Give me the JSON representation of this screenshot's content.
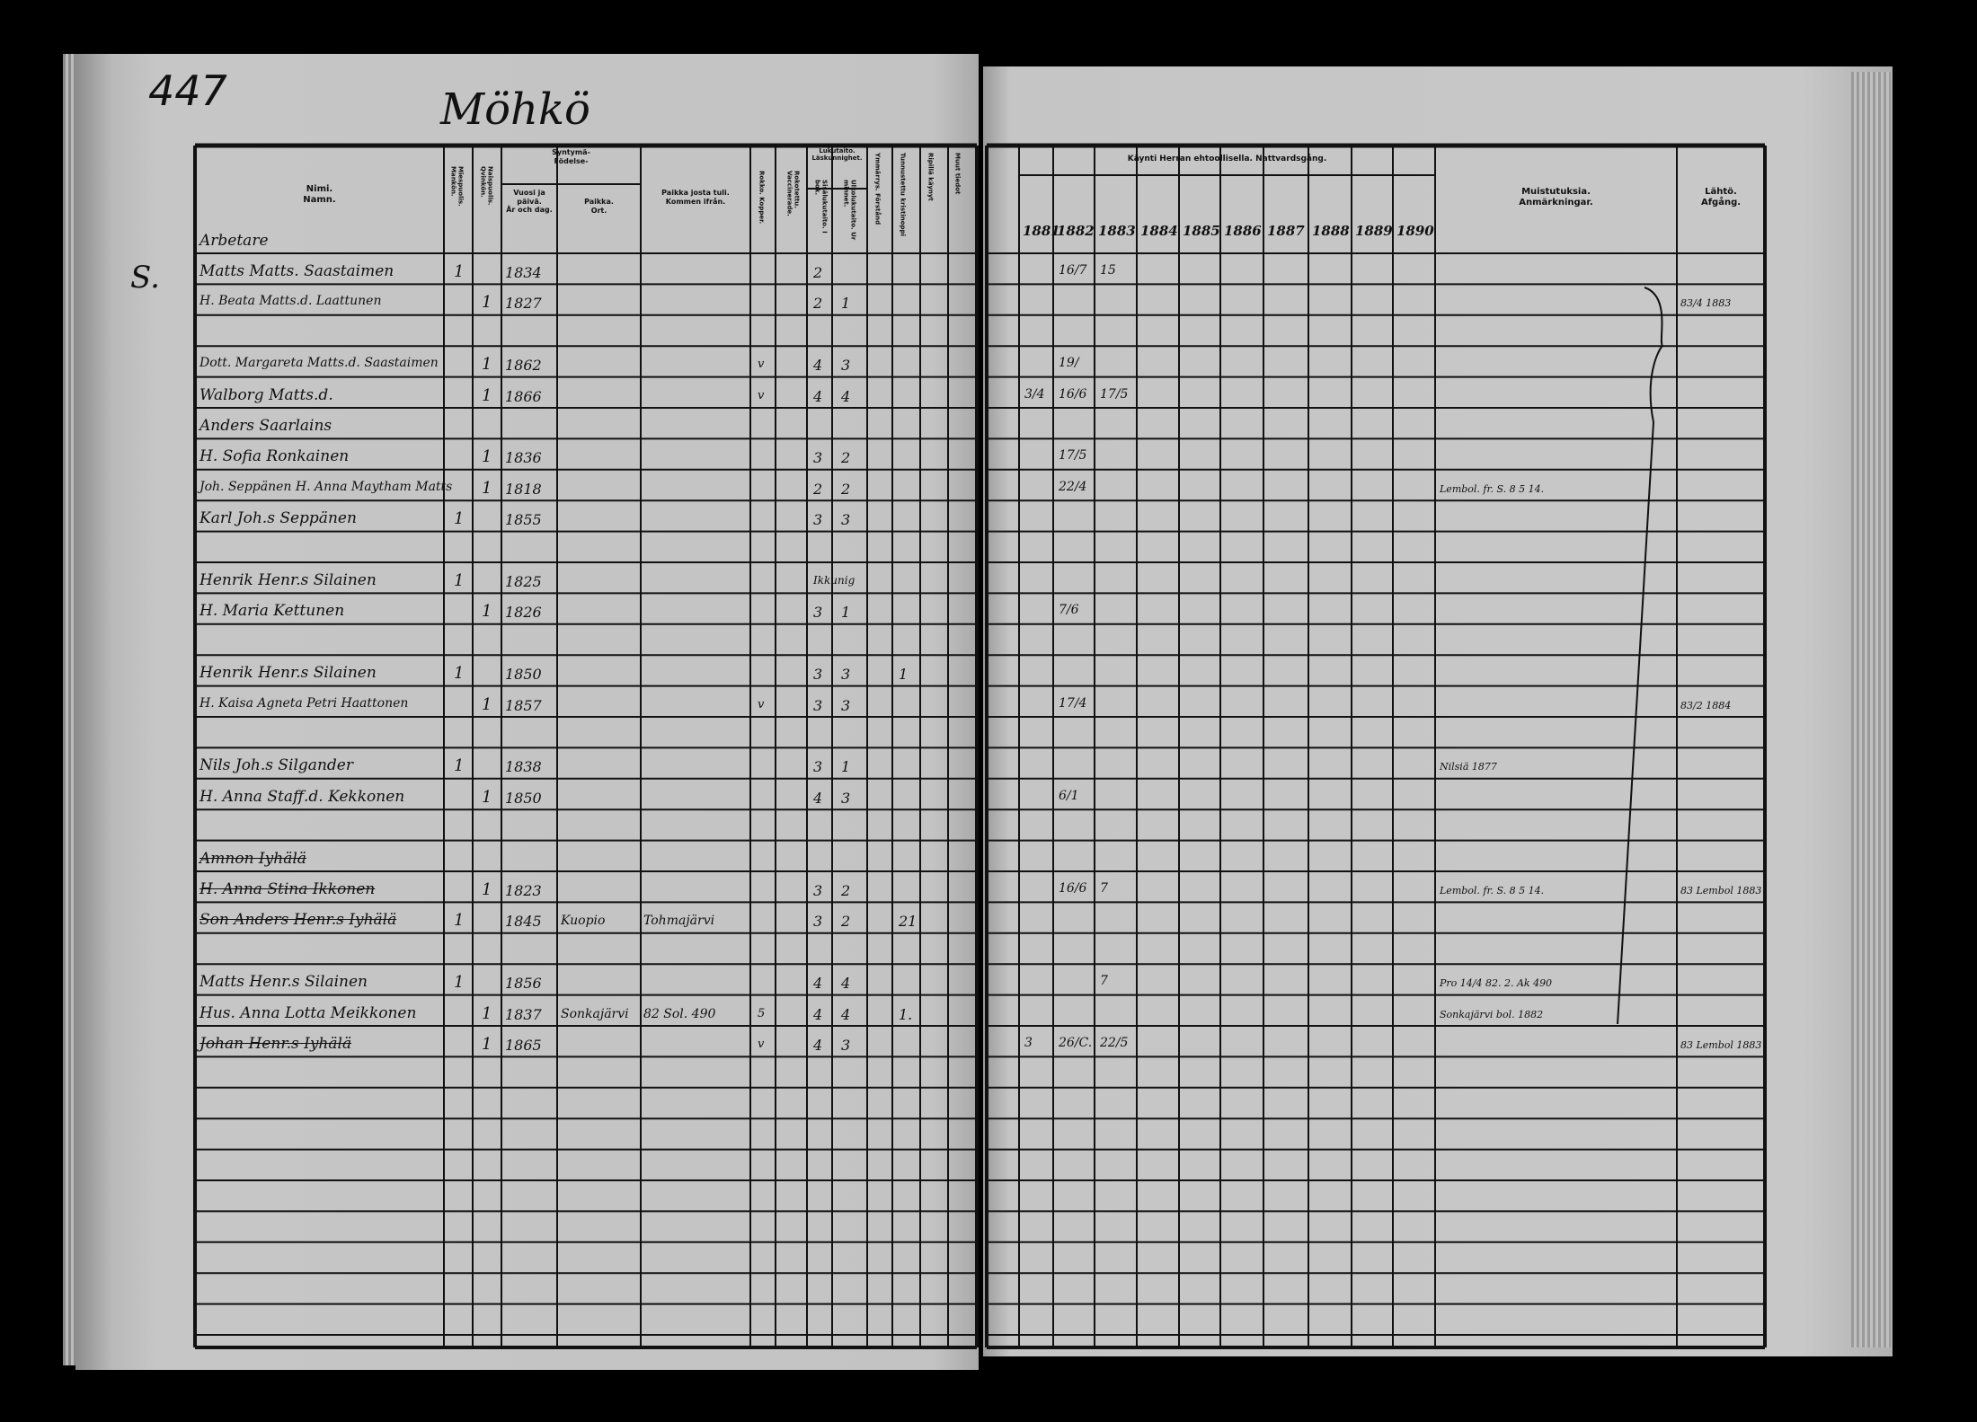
{
  "page_number": "447",
  "village": "Möhkö",
  "left_header": {
    "name": "Nimi.",
    "name_sv": "Namn.",
    "male": "Miespuolis. Mankön.",
    "female": "Naispuolis. Qvinkön.",
    "birth": "Syntymä-",
    "birth_sv": "Födelse-",
    "birth_date": "Vuosi ja päivä.",
    "birth_date_sv": "År och dag.",
    "birth_place": "Paikka.",
    "birth_place_sv": "Ort.",
    "came_from": "Paikka josta tuli.",
    "came_from_sv": "Kommen ifrån.",
    "smallpox": "Rokko. Kopper.",
    "vaccinated": "Rokotettu. Vaccinerade.",
    "literacy": "Lukutaito.",
    "literacy_sv": "Läskunnighet.",
    "read_book": "Sisälukutaito. I bok.",
    "read_memory": "Ulkolukutaito. Ur minnet.",
    "understanding": "Ymmärrys. Förstånd",
    "catechism": "Tunnustettu kristinoppi",
    "confirmed": "Ripillä käynyt",
    "other": "Muut tiedot"
  },
  "right_header": {
    "communion": "Käynti Herran ehtoollisella.  Nattvardsgång.",
    "years": [
      "1881",
      "1882",
      "1883",
      "1884",
      "1885",
      "1886",
      "1887",
      "1888",
      "1889",
      "1890"
    ],
    "remarks": "Muistutuksia.",
    "remarks_sv": "Anmärkningar.",
    "departure": "Lähtö.",
    "departure_sv": "Afgång."
  },
  "margin_note": "S.",
  "rows": [
    {
      "name": "Arbetare",
      "struck": false,
      "male": "",
      "female": "",
      "birth": "",
      "place": "",
      "from": "",
      "x1": "",
      "lit1": "",
      "lit2": "",
      "extra": "",
      "y1881": "",
      "y1882": "",
      "y1883": "",
      "remark": "",
      "departure": ""
    },
    {
      "name": "Matts Matts. Saastaimen",
      "male": "1",
      "female": "",
      "birth": "1834",
      "place": "",
      "from": "",
      "x1": "",
      "lit1": "2",
      "lit2": "",
      "extra": "",
      "y1881": "",
      "y1882": "",
      "y1883": "",
      "remark": "",
      "departure": ""
    },
    {
      "name": "H. Beata Matts.d. Laattunen",
      "male": "",
      "female": "1",
      "birth": "1827",
      "place": "",
      "from": "",
      "x1": "",
      "lit1": "2",
      "lit2": "1",
      "extra": "",
      "y1881": "",
      "y1882": "",
      "y1883": "",
      "remark": "",
      "departure": "83/4 1883"
    },
    {
      "name": "",
      "male": "",
      "female": "",
      "birth": "",
      "place": "",
      "from": "",
      "x1": "",
      "lit1": "",
      "lit2": "",
      "extra": "",
      "y1881": "",
      "y1882": "",
      "y1883": "",
      "remark": "",
      "departure": ""
    },
    {
      "name": "Dott. Margareta Matts.d. Saastaimen",
      "male": "",
      "female": "1",
      "birth": "1862",
      "place": "",
      "from": "",
      "x1": "v",
      "lit1": "4",
      "lit2": "3",
      "extra": "",
      "y1881": "",
      "y1882": "",
      "y1883": "",
      "remark": "",
      "departure": ""
    },
    {
      "name": "Walborg Matts.d.",
      "male": "",
      "female": "1",
      "birth": "1866",
      "place": "",
      "from": "",
      "x1": "v",
      "lit1": "4",
      "lit2": "4",
      "extra": "",
      "y1881": "",
      "y1882": "",
      "y1883": "",
      "remark": "",
      "departure": ""
    },
    {
      "name": "Anders Saarlains",
      "male": "",
      "female": "",
      "birth": "",
      "place": "",
      "from": "",
      "x1": "",
      "lit1": "",
      "lit2": "",
      "extra": "",
      "y1881": "",
      "y1882": "",
      "y1883": "",
      "remark": "",
      "departure": ""
    },
    {
      "name": "H. Sofia Ronkainen",
      "male": "",
      "female": "1",
      "birth": "1836",
      "place": "",
      "from": "",
      "x1": "",
      "lit1": "3",
      "lit2": "2",
      "extra": "",
      "y1881": "",
      "y1882": "",
      "y1883": "",
      "remark": "",
      "departure": ""
    },
    {
      "name": "Joh. Seppänen H. Anna Maytham Matts",
      "male": "",
      "female": "1",
      "birth": "1818",
      "place": "",
      "from": "",
      "x1": "",
      "lit1": "2",
      "lit2": "2",
      "extra": "",
      "y1881": "",
      "y1882": "",
      "y1883": "",
      "remark": "Lembol. fr. S. 8 5 14.",
      "departure": ""
    },
    {
      "name": "Karl Joh.s Seppänen",
      "male": "1",
      "female": "",
      "birth": "1855",
      "place": "",
      "from": "",
      "x1": "",
      "lit1": "3",
      "lit2": "3",
      "extra": "",
      "y1881": "",
      "y1882": "",
      "y1883": "",
      "remark": "",
      "departure": ""
    },
    {
      "name": "",
      "male": "",
      "female": "",
      "birth": "",
      "place": "",
      "from": "",
      "x1": "",
      "lit1": "",
      "lit2": "",
      "extra": "",
      "y1881": "",
      "y1882": "",
      "y1883": "",
      "remark": "",
      "departure": ""
    },
    {
      "name": "Henrik Henr.s Silainen",
      "male": "1",
      "female": "",
      "birth": "1825",
      "place": "",
      "from": "",
      "x1": "",
      "lit1": "Ikkunig",
      "lit2": "",
      "extra": "",
      "y1881": "",
      "y1882": "",
      "y1883": "",
      "remark": "",
      "departure": ""
    },
    {
      "name": "H. Maria Kettunen",
      "male": "",
      "female": "1",
      "birth": "1826",
      "place": "",
      "from": "",
      "x1": "",
      "lit1": "3",
      "lit2": "1",
      "extra": "",
      "y1881": "",
      "y1882": "",
      "y1883": "",
      "remark": "",
      "departure": ""
    },
    {
      "name": "",
      "male": "",
      "female": "",
      "birth": "",
      "place": "",
      "from": "",
      "x1": "",
      "lit1": "",
      "lit2": "",
      "extra": "",
      "y1881": "",
      "y1882": "",
      "y1883": "",
      "remark": "",
      "departure": ""
    },
    {
      "name": "Henrik Henr.s Silainen",
      "male": "1",
      "female": "",
      "birth": "1850",
      "place": "",
      "from": "",
      "x1": "",
      "lit1": "3",
      "lit2": "3",
      "extra": "1",
      "y1881": "",
      "y1882": "",
      "y1883": "",
      "remark": "",
      "departure": ""
    },
    {
      "name": "H. Kaisa Agneta Petri Haattonen",
      "male": "",
      "female": "1",
      "birth": "1857",
      "place": "",
      "from": "",
      "x1": "v",
      "lit1": "3",
      "lit2": "3",
      "extra": "",
      "y1881": "",
      "y1882": "",
      "y1883": "",
      "remark": "",
      "departure": "83/2 1884"
    },
    {
      "name": "",
      "male": "",
      "female": "",
      "birth": "",
      "place": "",
      "from": "",
      "x1": "",
      "lit1": "",
      "lit2": "",
      "extra": "",
      "y1881": "",
      "y1882": "",
      "y1883": "",
      "remark": "",
      "departure": ""
    },
    {
      "name": "Nils Joh.s Silgander",
      "male": "1",
      "female": "",
      "birth": "1838",
      "place": "",
      "from": "",
      "x1": "",
      "lit1": "3",
      "lit2": "1",
      "extra": "",
      "y1881": "",
      "y1882": "",
      "y1883": "",
      "remark": "Nilsiä 1877",
      "departure": ""
    },
    {
      "name": "H. Anna Staff.d. Kekkonen",
      "male": "",
      "female": "1",
      "birth": "1850",
      "place": "",
      "from": "",
      "x1": "",
      "lit1": "4",
      "lit2": "3",
      "extra": "",
      "y1881": "",
      "y1882": "",
      "y1883": "",
      "remark": "",
      "departure": ""
    },
    {
      "name": "",
      "male": "",
      "female": "",
      "birth": "",
      "place": "",
      "from": "",
      "x1": "",
      "lit1": "",
      "lit2": "",
      "extra": "",
      "y1881": "",
      "y1882": "",
      "y1883": "",
      "remark": "",
      "departure": ""
    },
    {
      "name": "Amnon Iyhälä",
      "struck": true,
      "male": "",
      "female": "",
      "birth": "",
      "place": "",
      "from": "",
      "x1": "",
      "lit1": "",
      "lit2": "",
      "extra": "",
      "y1881": "",
      "y1882": "",
      "y1883": "",
      "remark": "",
      "departure": ""
    },
    {
      "name": "H. Anna Stina Ikkonen",
      "struck": true,
      "male": "",
      "female": "1",
      "birth": "1823",
      "place": "",
      "from": "",
      "x1": "",
      "lit1": "3",
      "lit2": "2",
      "extra": "",
      "y1881": "",
      "y1882": "",
      "y1883": "",
      "remark": "Lembol. fr. S. 8 5 14.",
      "departure": "83 Lembol 1883"
    },
    {
      "name": "Son Anders Henr.s Iyhälä",
      "struck": true,
      "male": "1",
      "female": "",
      "birth": "1845",
      "place": "Kuopio",
      "from": "Tohmajärvi",
      "x1": "",
      "lit1": "3",
      "lit2": "2",
      "extra": "21",
      "y1881": "",
      "y1882": "",
      "y1883": "",
      "remark": "",
      "departure": ""
    },
    {
      "name": "",
      "male": "",
      "female": "",
      "birth": "",
      "place": "",
      "from": "",
      "x1": "",
      "lit1": "",
      "lit2": "",
      "extra": "",
      "y1881": "",
      "y1882": "",
      "y1883": "",
      "remark": "",
      "departure": ""
    },
    {
      "name": "Matts Henr.s Silainen",
      "male": "1",
      "female": "",
      "birth": "1856",
      "place": "",
      "from": "",
      "x1": "",
      "lit1": "4",
      "lit2": "4",
      "extra": "",
      "y1881": "",
      "y1882": "",
      "y1883": "",
      "remark": "Pro 14/4 82. 2. Ak 490",
      "departure": ""
    },
    {
      "name": "Hus. Anna Lotta Meikkonen",
      "male": "",
      "female": "1",
      "birth": "1837",
      "place": "Sonkajärvi",
      "from": "82 Sol. 490",
      "x1": "5",
      "lit1": "4",
      "lit2": "4",
      "extra": "1.",
      "y1881": "",
      "y1882": "",
      "y1883": "",
      "remark": "Sonkajärvi bol. 1882",
      "departure": ""
    },
    {
      "name": "Johan Henr.s Iyhälä",
      "struck": true,
      "male": "",
      "female": "1",
      "birth": "1865",
      "place": "",
      "from": "",
      "x1": "v",
      "lit1": "4",
      "lit2": "3",
      "extra": "",
      "y1881": "",
      "y1882": "",
      "y1883": "",
      "remark": "",
      "departure": "83 Lembol 1883"
    }
  ],
  "communion_marks": [
    {
      "row": 1,
      "year": "1882",
      "text": "16/7"
    },
    {
      "row": 1,
      "year": "1883",
      "text": "15"
    },
    {
      "row": 4,
      "year": "1882",
      "text": "19/"
    },
    {
      "row": 5,
      "year": "1881",
      "text": "3/4"
    },
    {
      "row": 5,
      "year": "1882",
      "text": "16/6"
    },
    {
      "row": 5,
      "year": "1883",
      "text": "17/5"
    },
    {
      "row": 7,
      "year": "1882",
      "text": "17/5"
    },
    {
      "row": 8,
      "year": "1882",
      "text": "22/4"
    },
    {
      "row": 12,
      "year": "1882",
      "text": "7/6"
    },
    {
      "row": 15,
      "year": "1882",
      "text": "17/4"
    },
    {
      "row": 18,
      "year": "1882",
      "text": "6/1"
    },
    {
      "row": 21,
      "year": "1882",
      "text": "16/6"
    },
    {
      "row": 21,
      "year": "1883",
      "text": "7"
    },
    {
      "row": 24,
      "year": "1883",
      "text": "7"
    },
    {
      "row": 26,
      "year": "1881",
      "text": "3"
    },
    {
      "row": 26,
      "year": "1882",
      "text": "26/C."
    },
    {
      "row": 26,
      "year": "1883",
      "text": "22/5"
    }
  ],
  "colors": {
    "paper": "#c4c4c4",
    "ink": "#111111",
    "background": "#000000"
  }
}
